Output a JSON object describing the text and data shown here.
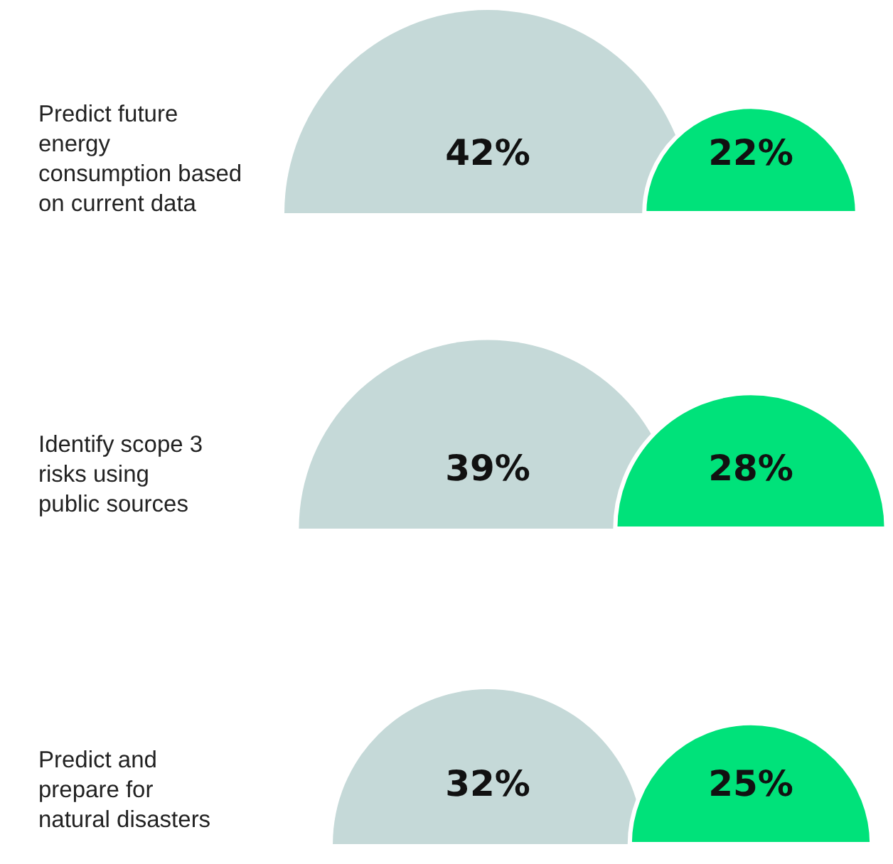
{
  "chart_data": {
    "type": "other",
    "categories": [
      "Predict future energy consumption based on current data",
      "Identify scope 3 risks using public sources",
      "Predict and prepare for natural disasters"
    ],
    "series": [
      {
        "color": "#c5d9d8",
        "values": [
          42,
          39,
          32
        ],
        "value_labels": [
          "42%",
          "39%",
          "32%"
        ]
      },
      {
        "color": "#00e27a",
        "values": [
          22,
          28,
          25
        ],
        "value_labels": [
          "22%",
          "28%",
          "25%"
        ]
      }
    ]
  }
}
